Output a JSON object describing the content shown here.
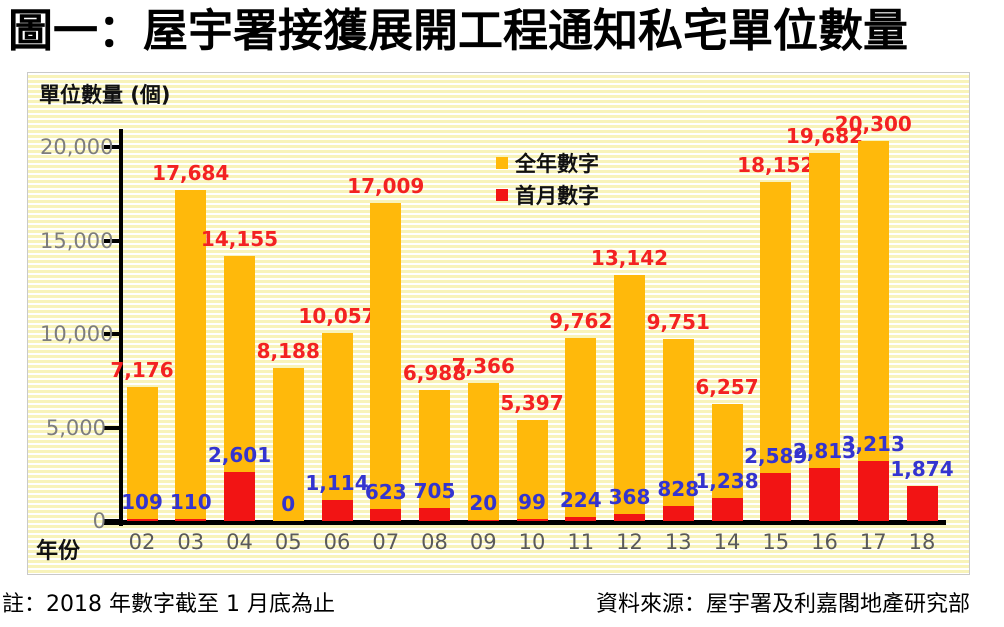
{
  "title": "圖一：屋宇署接獲展開工程通知私宅單位數量",
  "notes": {
    "left": "註：2018 年數字截至 1 月底為止",
    "right": "資料來源：屋宇署及利嘉閣地產研究部"
  },
  "colors": {
    "bar_yellow": "#ffb90b",
    "bar_red": "#f21414",
    "value_label_red": "#f32222",
    "value_label_blue": "#3434cf",
    "axis_black": "#000000",
    "tick_text_gray": "#7d7d7d",
    "year_text_gray": "#5a5a5a",
    "panel_stripe_yellow": "#f8f3ba"
  },
  "chart_data": {
    "type": "bar",
    "title": "圖一：屋宇署接獲展開工程通知私宅單位數量",
    "axis_title": "單位數量 (個)",
    "xlabel": "年份",
    "ylabel": "單位數量 (個)",
    "ylim": [
      0,
      21000
    ],
    "grid": false,
    "legend_position": "upper-center",
    "y_ticks": [
      {
        "value": 20000,
        "label": "20,000"
      },
      {
        "value": 15000,
        "label": "15,000"
      },
      {
        "value": 10000,
        "label": "10,000"
      },
      {
        "value": 5000,
        "label": "5,000"
      },
      {
        "value": 0,
        "label": "0"
      }
    ],
    "categories": [
      "02",
      "03",
      "04",
      "05",
      "06",
      "07",
      "08",
      "09",
      "10",
      "11",
      "12",
      "13",
      "14",
      "15",
      "16",
      "17",
      "18"
    ],
    "series": [
      {
        "name": "全年數字",
        "color_key": "bar_yellow",
        "label_color_key": "value_label_red",
        "values": [
          7176,
          17684,
          14155,
          8188,
          10057,
          17009,
          6988,
          7366,
          5397,
          9762,
          13142,
          9751,
          6257,
          18152,
          19682,
          20300,
          null
        ]
      },
      {
        "name": "首月數字",
        "color_key": "bar_red",
        "label_color_key": "value_label_blue",
        "values": [
          109,
          110,
          2601,
          0,
          1114,
          623,
          705,
          20,
          99,
          224,
          368,
          828,
          1238,
          2589,
          2813,
          3213,
          1874
        ]
      }
    ]
  }
}
